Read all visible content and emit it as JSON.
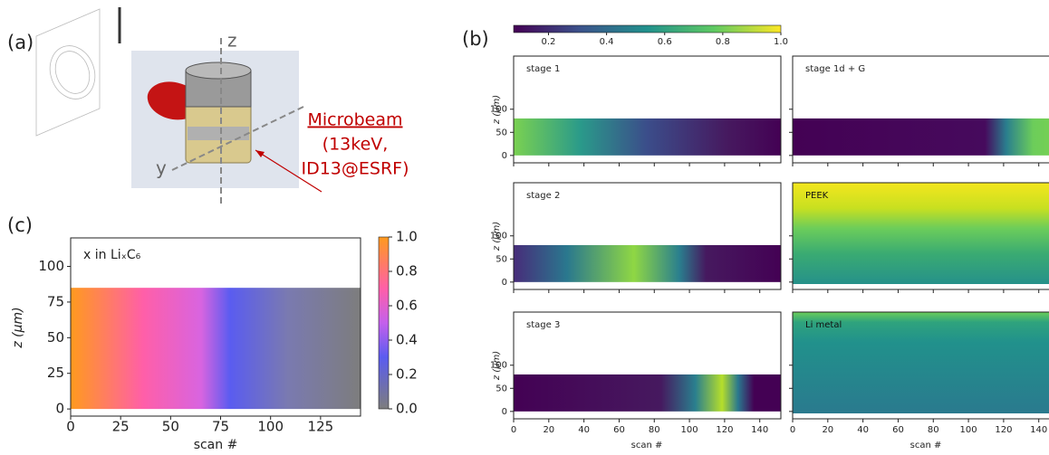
{
  "panel_a": {
    "label": "(a)",
    "axis_z": "z",
    "axis_y": "y",
    "beam_title": "Microbeam",
    "beam_detail": [
      "(13keV,",
      "ID13@ESRF)"
    ]
  },
  "panel_b": {
    "label": "(b)",
    "xlabel": "scan #",
    "ylabel": "z (μm)",
    "xlim": [
      0,
      152
    ],
    "ylim": [
      -16,
      215
    ],
    "xticks": [
      0,
      20,
      40,
      60,
      80,
      100,
      120,
      140
    ],
    "yticks": [
      0,
      50,
      100
    ],
    "colorbar": {
      "lim": [
        0.08,
        1
      ],
      "ticks": [
        0.2,
        0.4,
        0.6,
        0.8,
        {
          "value": 1,
          "label": "1.0"
        }
      ]
    },
    "subplots": [
      {
        "title": "stage 1"
      },
      {
        "title": "stage 1d + G"
      },
      {
        "title": "stage 2"
      },
      {
        "title": "PEEK"
      },
      {
        "title": "stage 3"
      },
      {
        "title": "Li metal"
      }
    ]
  },
  "panel_c": {
    "label": "(c)",
    "annotation": "x in LiₓC₆",
    "xlabel": "scan #",
    "ylabel": "z (μm)",
    "xlim": [
      0,
      145
    ],
    "ylim": [
      -5,
      120
    ],
    "xticks": [
      0,
      25,
      50,
      75,
      100,
      125
    ],
    "yticks": [
      0,
      25,
      50,
      75,
      100
    ],
    "colorbar": {
      "lim": [
        0,
        1
      ],
      "ticks": [
        {
          "value": 0,
          "label": "0.0"
        },
        0.2,
        0.4,
        0.6,
        0.8,
        {
          "value": 1,
          "label": "1.0"
        }
      ]
    }
  }
}
